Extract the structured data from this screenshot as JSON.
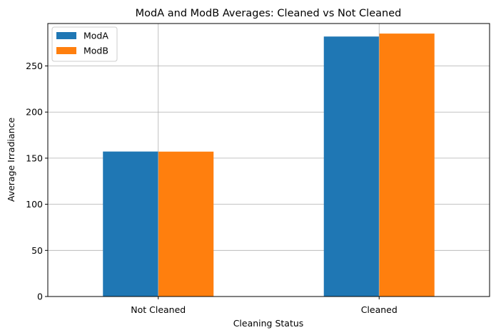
{
  "chart_data": {
    "type": "bar",
    "title": "ModA and ModB Averages: Cleaned vs Not Cleaned",
    "xlabel": "Cleaning Status",
    "ylabel": "Average Irradiance",
    "categories": [
      "Not Cleaned",
      "Cleaned"
    ],
    "series": [
      {
        "name": "ModA",
        "color": "#1f77b4",
        "values": [
          157.2,
          281.9
        ]
      },
      {
        "name": "ModB",
        "color": "#ff7f0e",
        "values": [
          157.1,
          285.1
        ]
      }
    ],
    "ylim": [
      0,
      296
    ],
    "yticks": [
      0,
      50,
      100,
      150,
      200,
      250
    ],
    "grid": true,
    "legend": "top-left"
  }
}
